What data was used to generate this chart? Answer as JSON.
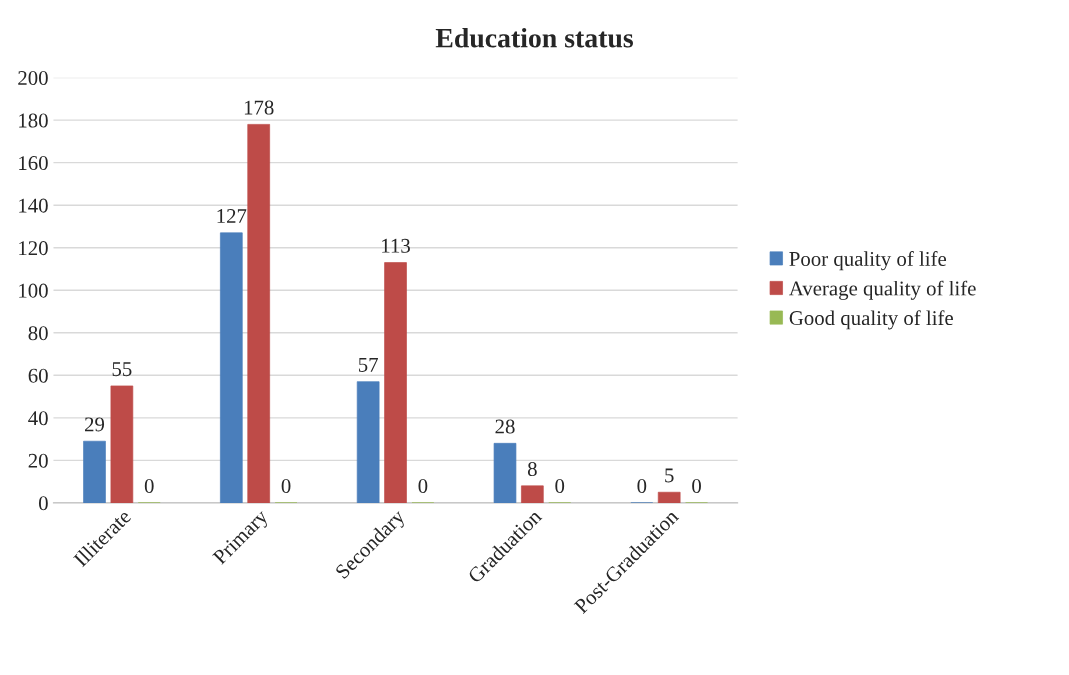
{
  "chart_data": {
    "type": "bar",
    "title": "Education status",
    "categories": [
      "Illiterate",
      "Primary",
      "Secondary",
      "Graduation",
      "Post-Graduation"
    ],
    "series": [
      {
        "name": "Poor quality of life",
        "color": "#4a7ebb",
        "values": [
          29,
          127,
          57,
          28,
          0
        ]
      },
      {
        "name": "Average quality of life",
        "color": "#be4b48",
        "values": [
          55,
          178,
          113,
          8,
          5
        ]
      },
      {
        "name": "Good quality of life",
        "color": "#98b954",
        "values": [
          0,
          0,
          0,
          0,
          0
        ]
      }
    ],
    "ylim": [
      0,
      200
    ],
    "yticks": [
      0,
      20,
      40,
      60,
      80,
      100,
      120,
      140,
      160,
      180,
      200
    ],
    "grid": "y",
    "legend": "right",
    "data_labels": true
  }
}
